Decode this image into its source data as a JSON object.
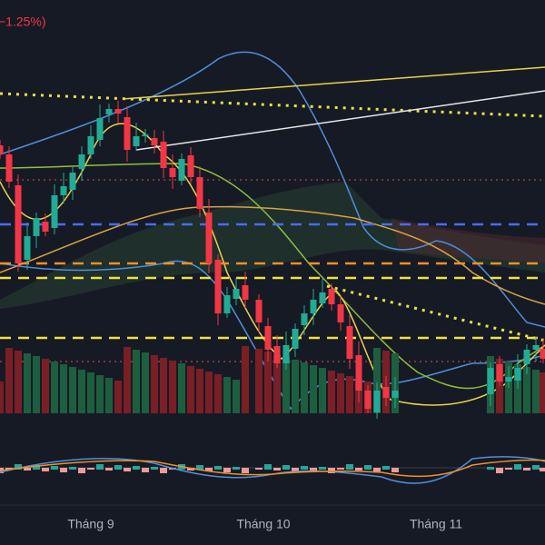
{
  "header": {
    "change": "−1.25%)"
  },
  "x_axis": {
    "labels": [
      "Tháng 9",
      "Tháng 10",
      "Tháng 11"
    ]
  }
}
